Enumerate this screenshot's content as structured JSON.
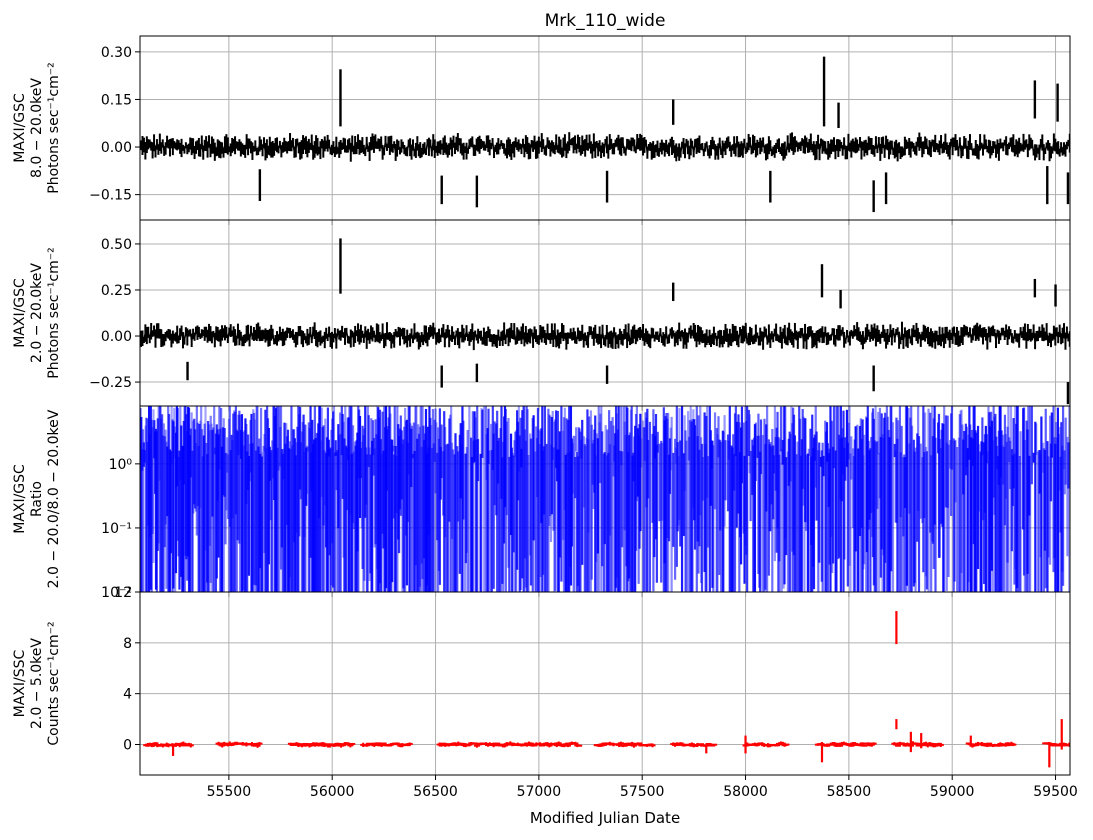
{
  "figure": {
    "title": "Mrk_110_wide",
    "xlabel": "Modified Julian Date"
  },
  "chart_data": [
    {
      "type": "line",
      "panel": "hard-band",
      "ylabel_lines": [
        "MAXI/GSC",
        "8.0 − 20.0keV",
        "Photons sec⁻¹cm⁻²"
      ],
      "xlim": [
        55070,
        59570
      ],
      "ylim": [
        -0.23,
        0.35
      ],
      "x_ticks": [
        55500,
        56000,
        56500,
        57000,
        57500,
        58000,
        58500,
        59000,
        59500
      ],
      "y_ticks": [
        -0.15,
        0.0,
        0.15,
        0.3
      ],
      "y_tick_labels": [
        "−0.15",
        "0.00",
        "0.15",
        "0.30"
      ],
      "grid": true,
      "color": "#000000",
      "noise_amplitude": 0.03,
      "notable_points": [
        {
          "x": 56040,
          "y": 0.155,
          "err": 0.09
        },
        {
          "x": 58380,
          "y": 0.175,
          "err": 0.11
        },
        {
          "x": 59400,
          "y": 0.15,
          "err": 0.06
        },
        {
          "x": 59510,
          "y": 0.14,
          "err": 0.06
        },
        {
          "x": 57650,
          "y": 0.11,
          "err": 0.04
        },
        {
          "x": 58450,
          "y": 0.1,
          "err": 0.04
        },
        {
          "x": 56530,
          "y": -0.135,
          "err": 0.045
        },
        {
          "x": 56700,
          "y": -0.14,
          "err": 0.05
        },
        {
          "x": 57330,
          "y": -0.125,
          "err": 0.05
        },
        {
          "x": 58120,
          "y": -0.125,
          "err": 0.05
        },
        {
          "x": 58620,
          "y": -0.155,
          "err": 0.05
        },
        {
          "x": 58680,
          "y": -0.13,
          "err": 0.05
        },
        {
          "x": 59560,
          "y": -0.13,
          "err": 0.05
        },
        {
          "x": 59460,
          "y": -0.12,
          "err": 0.06
        },
        {
          "x": 55650,
          "y": -0.12,
          "err": 0.05
        }
      ]
    },
    {
      "type": "line",
      "panel": "wide-band",
      "ylabel_lines": [
        "MAXI/GSC",
        "2.0 − 20.0keV",
        "Photons sec⁻¹cm⁻²"
      ],
      "xlim": [
        55070,
        59570
      ],
      "ylim": [
        -0.38,
        0.63
      ],
      "x_ticks": [
        55500,
        56000,
        56500,
        57000,
        57500,
        58000,
        58500,
        59000,
        59500
      ],
      "y_ticks": [
        -0.25,
        0.0,
        0.25,
        0.5
      ],
      "y_tick_labels": [
        "−0.25",
        "0.00",
        "0.25",
        "0.50"
      ],
      "grid": true,
      "color": "#000000",
      "noise_amplitude": 0.05,
      "notable_points": [
        {
          "x": 56040,
          "y": 0.38,
          "err": 0.15
        },
        {
          "x": 58370,
          "y": 0.3,
          "err": 0.09
        },
        {
          "x": 59400,
          "y": 0.26,
          "err": 0.05
        },
        {
          "x": 58460,
          "y": 0.2,
          "err": 0.05
        },
        {
          "x": 57650,
          "y": 0.24,
          "err": 0.05
        },
        {
          "x": 59500,
          "y": 0.22,
          "err": 0.06
        },
        {
          "x": 55300,
          "y": -0.19,
          "err": 0.05
        },
        {
          "x": 56530,
          "y": -0.22,
          "err": 0.06
        },
        {
          "x": 56700,
          "y": -0.2,
          "err": 0.05
        },
        {
          "x": 57330,
          "y": -0.21,
          "err": 0.05
        },
        {
          "x": 58620,
          "y": -0.23,
          "err": 0.07
        },
        {
          "x": 59560,
          "y": -0.31,
          "err": 0.06
        }
      ]
    },
    {
      "type": "bar",
      "panel": "hardness-ratio",
      "ylabel_lines": [
        "MAXI/GSC",
        "Ratio",
        "2.0 − 20.0/8.0 − 20.0keV"
      ],
      "xlim": [
        55070,
        59570
      ],
      "ylim": [
        0.01,
        8
      ],
      "yscale": "log",
      "x_ticks": [
        55500,
        56000,
        56500,
        57000,
        57500,
        58000,
        58500,
        59000,
        59500
      ],
      "y_ticks": [
        0.01,
        0.1,
        1
      ],
      "y_tick_labels": [
        "10⁻²",
        "10⁻¹",
        "10⁰"
      ],
      "grid": true,
      "color": "#0000ff",
      "note": "dense vertical error bars spanning nearly the full range"
    },
    {
      "type": "scatter",
      "panel": "ssc",
      "ylabel_lines": [
        "MAXI/SSC",
        "2.0 − 5.0keV",
        "Counts sec⁻¹cm⁻²"
      ],
      "xlim": [
        55070,
        59570
      ],
      "ylim": [
        -2.4,
        12
      ],
      "x_ticks": [
        55500,
        56000,
        56500,
        57000,
        57500,
        58000,
        58500,
        59000,
        59500
      ],
      "x_tick_labels": [
        "55500",
        "56000",
        "56500",
        "57000",
        "57500",
        "58000",
        "58500",
        "59000",
        "59500"
      ],
      "y_ticks": [
        0,
        4,
        8,
        12
      ],
      "y_tick_labels": [
        "0",
        "4",
        "8",
        "12"
      ],
      "grid": true,
      "color": "#ff0000",
      "segments": [
        [
          55100,
          55320
        ],
        [
          55450,
          55650
        ],
        [
          55800,
          56100
        ],
        [
          56150,
          56380
        ],
        [
          56520,
          57200
        ],
        [
          57280,
          57550
        ],
        [
          57650,
          57850
        ],
        [
          58000,
          58200
        ],
        [
          58350,
          58620
        ],
        [
          58720,
          58950
        ],
        [
          59080,
          59300
        ],
        [
          59450,
          59570
        ]
      ],
      "notable_points": [
        {
          "x": 58730,
          "y": 9.2,
          "err": 1.3
        },
        {
          "x": 58730,
          "y": 1.6,
          "err": 0.4
        },
        {
          "x": 59470,
          "y": -0.8,
          "err": 1.0
        },
        {
          "x": 59530,
          "y": 0.8,
          "err": 1.2
        },
        {
          "x": 58370,
          "y": -0.6,
          "err": 0.8
        },
        {
          "x": 58800,
          "y": 0.2,
          "err": 0.8
        },
        {
          "x": 58850,
          "y": 0.3,
          "err": 0.6
        },
        {
          "x": 55230,
          "y": -0.5,
          "err": 0.4
        },
        {
          "x": 57810,
          "y": -0.4,
          "err": 0.3
        },
        {
          "x": 58000,
          "y": 0.0,
          "err": 0.7
        },
        {
          "x": 59090,
          "y": 0.4,
          "err": 0.3
        }
      ]
    }
  ]
}
